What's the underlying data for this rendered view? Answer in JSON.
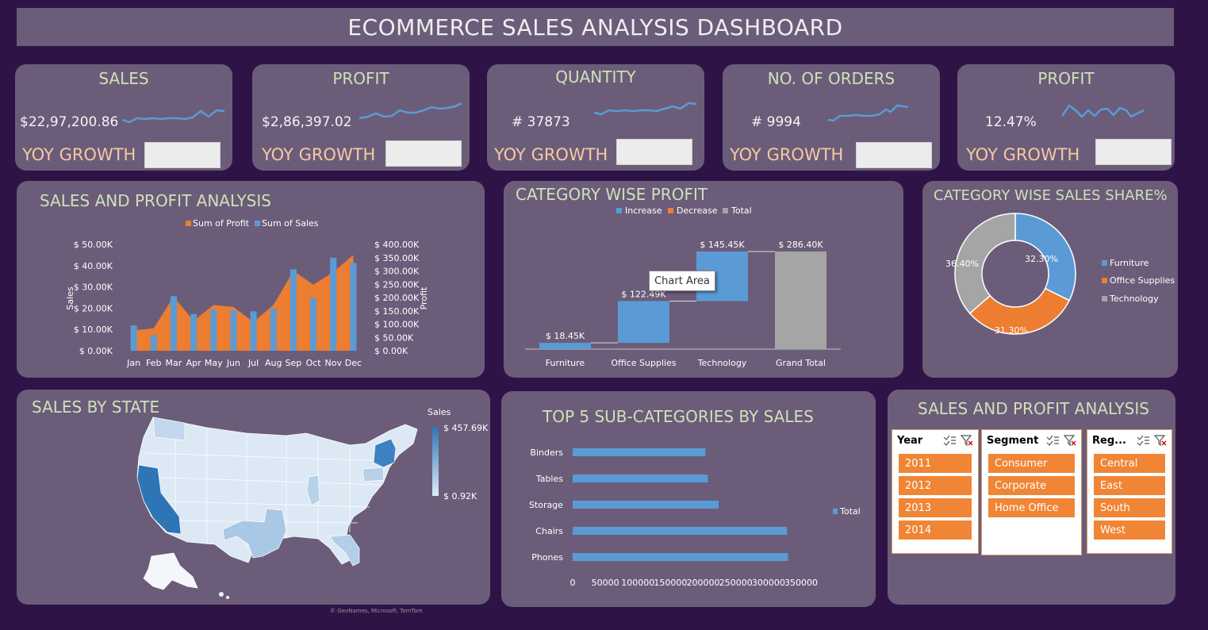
{
  "title": "ECOMMERCE SALES ANALYSIS DASHBOARD",
  "kpis": [
    {
      "title": "SALES",
      "value": "$22,97,200.86",
      "yoy": "YOY GROWTH"
    },
    {
      "title": "PROFIT",
      "value": "$2,86,397.02",
      "yoy": "YOY GROWTH"
    },
    {
      "title": "QUANTITY",
      "value": "# 37873",
      "yoy": "YOY GROWTH"
    },
    {
      "title": "NO. OF ORDERS",
      "value": "# 9994",
      "yoy": "YOY GROWTH"
    },
    {
      "title": "PROFIT",
      "value": "12.47%",
      "yoy": "YOY GROWTH"
    }
  ],
  "sections": {
    "sales_profit": "SALES AND PROFIT ANALYSIS",
    "category_profit": "CATEGORY WISE PROFIT",
    "category_share": "CATEGORY WISE SALES SHARE%",
    "sales_state": "SALES BY STATE",
    "top5": "TOP 5 SUB-CATEGORIES BY SALES",
    "slicers": "SALES AND PROFIT ANALYSIS"
  },
  "tooltip": "Chart Area",
  "map": {
    "legend_title": "Sales",
    "max_label": "$ 457.69K",
    "min_label": "$ 0.92K",
    "credit": "© GeoNames, Microsoft, TomTom"
  },
  "colors": {
    "sales": "#5b9bd5",
    "profit": "#ed7d31",
    "total": "#a5a5a5",
    "panel": "#6b5d79",
    "background": "#2e1446",
    "heading": "#cfe0b8"
  },
  "slicers": [
    {
      "header": "Year",
      "items": [
        "2011",
        "2012",
        "2013",
        "2014"
      ]
    },
    {
      "header": "Segment",
      "items": [
        "Consumer",
        "Corporate",
        "Home Office"
      ]
    },
    {
      "header": "Reg...",
      "items": [
        "Central",
        "East",
        "South",
        "West"
      ]
    }
  ],
  "chart_data": [
    {
      "type": "bar",
      "title": "SALES AND PROFIT ANALYSIS",
      "categories": [
        "Jan",
        "Feb",
        "Mar",
        "Apr",
        "May",
        "Jun",
        "Jul",
        "Aug",
        "Sep",
        "Oct",
        "Nov",
        "Dec"
      ],
      "series": [
        {
          "name": "Sum of Profit",
          "chart": "area",
          "axis": "left",
          "values": [
            9500,
            10500,
            25500,
            14000,
            21500,
            20500,
            13500,
            21500,
            37500,
            31000,
            37000,
            45000
          ]
        },
        {
          "name": "Sum of Sales",
          "chart": "bar",
          "axis": "right",
          "values": [
            95000,
            58000,
            205000,
            138000,
            155000,
            152000,
            148000,
            158000,
            306000,
            199000,
            350000,
            330000
          ]
        }
      ],
      "ylabel": "Sales",
      "y2label": "Profit",
      "y_ticks": [
        "$ 0.00K",
        "$ 10.00K",
        "$ 20.00K",
        "$ 30.00K",
        "$ 40.00K",
        "$ 50.00K"
      ],
      "y2_ticks": [
        "$ 0.00K",
        "$ 50.00K",
        "$ 100.00K",
        "$ 150.00K",
        "$ 200.00K",
        "$ 250.00K",
        "$ 300.00K",
        "$ 350.00K",
        "$ 400.00K"
      ],
      "ylim": [
        0,
        50000
      ],
      "y2lim": [
        0,
        400000
      ],
      "legend": "top"
    },
    {
      "type": "bar",
      "subtype": "waterfall",
      "title": "CATEGORY WISE PROFIT",
      "categories": [
        "Furniture",
        "Office Supplies",
        "Technology",
        "Grand Total"
      ],
      "values": [
        18.45,
        122.49,
        145.45,
        286.4
      ],
      "labels": [
        "$ 18.45K",
        "$ 122.49K",
        "$ 145.45K",
        "$ 286.40K"
      ],
      "legend_entries": [
        "Increase",
        "Decrease",
        "Total"
      ],
      "legend": "top"
    },
    {
      "type": "pie",
      "subtype": "doughnut",
      "title": "CATEGORY WISE SALES SHARE%",
      "categories": [
        "Furniture",
        "Office Supplies",
        "Technology"
      ],
      "values": [
        32.3,
        31.3,
        36.4
      ],
      "labels": [
        "32.30%",
        "31.30%",
        "36.40%"
      ],
      "legend": "right"
    },
    {
      "type": "bar",
      "orientation": "horizontal",
      "title": "TOP 5 SUB-CATEGORIES BY SALES",
      "categories": [
        "Binders",
        "Tables",
        "Storage",
        "Chairs",
        "Phones"
      ],
      "values": [
        203413,
        206966,
        223844,
        328449,
        330007
      ],
      "x_ticks": [
        "0",
        "50000",
        "100000",
        "150000",
        "200000",
        "250000",
        "300000",
        "350000"
      ],
      "xlim": [
        0,
        350000
      ],
      "series_name": "Total",
      "legend": "right"
    }
  ]
}
